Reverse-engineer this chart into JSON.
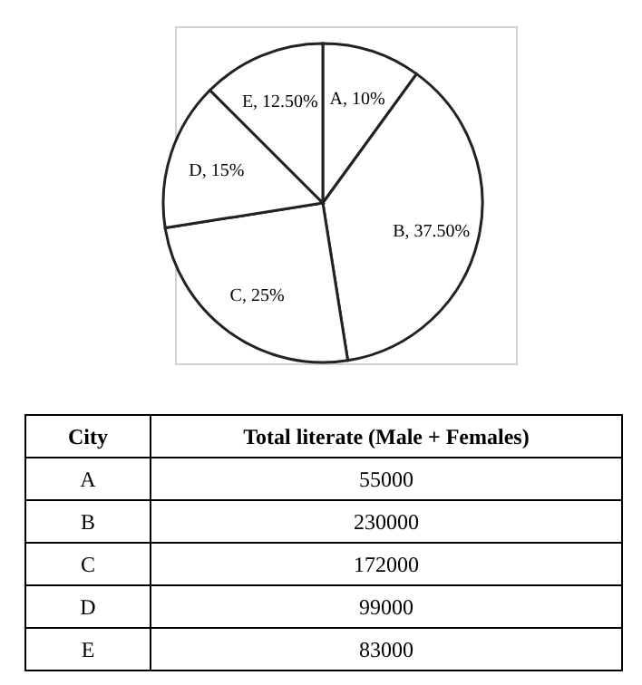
{
  "chart_data": [
    {
      "type": "pie",
      "categories": [
        "A",
        "B",
        "C",
        "D",
        "E"
      ],
      "values": [
        10,
        37.5,
        25,
        15,
        12.5
      ],
      "colors": [
        "#ffffff",
        "#ffffff",
        "#ffffff",
        "#ffffff",
        "#ffffff"
      ],
      "value_labels": [
        "10%",
        "37.50%",
        "25%",
        "15%",
        "12.50%"
      ]
    },
    {
      "type": "other",
      "xlabel": "City",
      "ylabel": "Total literate (Male + Females)",
      "categories": [
        "A",
        "B",
        "C",
        "D",
        "E"
      ],
      "values": [
        55000,
        230000,
        172000,
        99000,
        83000
      ],
      "data_labels": true
    }
  ]
}
